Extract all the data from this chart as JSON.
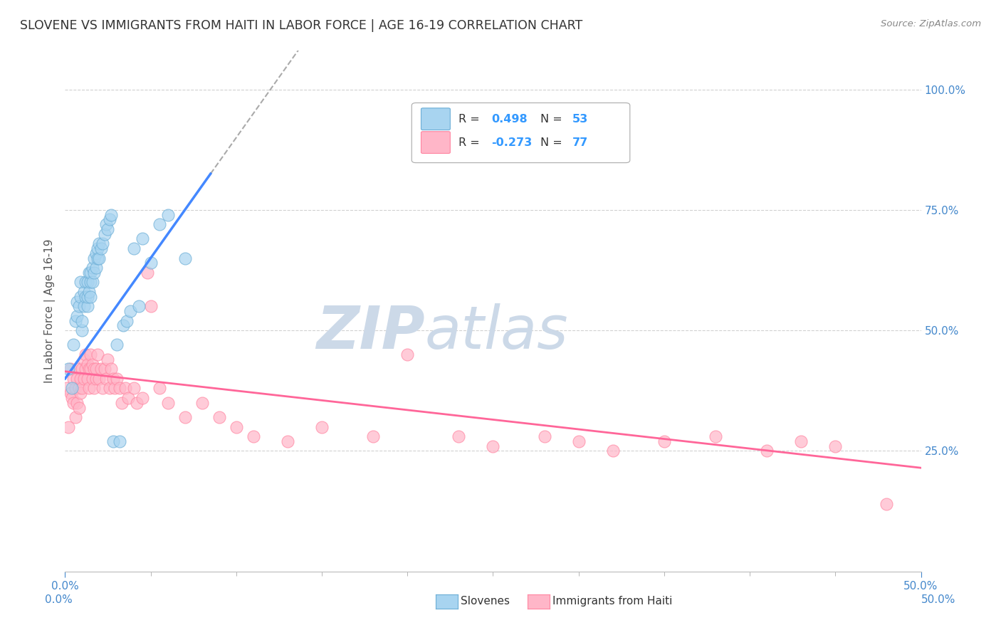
{
  "title": "SLOVENE VS IMMIGRANTS FROM HAITI IN LABOR FORCE | AGE 16-19 CORRELATION CHART",
  "source": "Source: ZipAtlas.com",
  "ylabel": "In Labor Force | Age 16-19",
  "xmin": 0.0,
  "xmax": 0.5,
  "ymin": 0.0,
  "ymax": 1.08,
  "slovene_color": "#a8d4f0",
  "slovene_edge": "#6baed6",
  "haiti_color": "#ffb6c8",
  "haiti_edge": "#ff85a1",
  "line_blue": "#4488ff",
  "line_pink": "#ff6699",
  "line_dash": "#aaaaaa",
  "slovene_R": 0.498,
  "slovene_N": 53,
  "haiti_R": -0.273,
  "haiti_N": 77,
  "watermark_zip": "ZIP",
  "watermark_atlas": "atlas",
  "watermark_color": "#ccd9e8",
  "slovene_x": [
    0.002,
    0.004,
    0.005,
    0.006,
    0.007,
    0.007,
    0.008,
    0.009,
    0.009,
    0.01,
    0.01,
    0.011,
    0.011,
    0.012,
    0.012,
    0.013,
    0.013,
    0.013,
    0.014,
    0.014,
    0.015,
    0.015,
    0.015,
    0.016,
    0.016,
    0.017,
    0.017,
    0.018,
    0.018,
    0.019,
    0.019,
    0.02,
    0.02,
    0.021,
    0.022,
    0.023,
    0.024,
    0.025,
    0.026,
    0.027,
    0.028,
    0.03,
    0.032,
    0.034,
    0.036,
    0.038,
    0.04,
    0.043,
    0.045,
    0.05,
    0.055,
    0.06,
    0.07
  ],
  "slovene_y": [
    0.42,
    0.38,
    0.47,
    0.52,
    0.53,
    0.56,
    0.55,
    0.57,
    0.6,
    0.5,
    0.52,
    0.55,
    0.58,
    0.57,
    0.6,
    0.55,
    0.57,
    0.6,
    0.58,
    0.62,
    0.57,
    0.6,
    0.62,
    0.6,
    0.63,
    0.62,
    0.65,
    0.63,
    0.66,
    0.65,
    0.67,
    0.65,
    0.68,
    0.67,
    0.68,
    0.7,
    0.72,
    0.71,
    0.73,
    0.74,
    0.27,
    0.47,
    0.27,
    0.51,
    0.52,
    0.54,
    0.67,
    0.55,
    0.69,
    0.64,
    0.72,
    0.74,
    0.65
  ],
  "haiti_x": [
    0.001,
    0.002,
    0.003,
    0.003,
    0.004,
    0.005,
    0.005,
    0.006,
    0.006,
    0.007,
    0.007,
    0.008,
    0.008,
    0.008,
    0.009,
    0.009,
    0.01,
    0.01,
    0.011,
    0.011,
    0.012,
    0.012,
    0.013,
    0.013,
    0.014,
    0.014,
    0.015,
    0.015,
    0.016,
    0.016,
    0.017,
    0.017,
    0.018,
    0.018,
    0.019,
    0.02,
    0.021,
    0.022,
    0.023,
    0.024,
    0.025,
    0.026,
    0.027,
    0.028,
    0.029,
    0.03,
    0.032,
    0.033,
    0.035,
    0.037,
    0.04,
    0.042,
    0.045,
    0.048,
    0.05,
    0.055,
    0.06,
    0.07,
    0.08,
    0.09,
    0.1,
    0.11,
    0.13,
    0.15,
    0.18,
    0.2,
    0.23,
    0.25,
    0.28,
    0.3,
    0.32,
    0.35,
    0.38,
    0.41,
    0.43,
    0.45,
    0.48
  ],
  "haiti_y": [
    0.38,
    0.3,
    0.37,
    0.42,
    0.36,
    0.35,
    0.4,
    0.32,
    0.38,
    0.35,
    0.4,
    0.34,
    0.38,
    0.42,
    0.37,
    0.4,
    0.38,
    0.42,
    0.4,
    0.44,
    0.42,
    0.45,
    0.4,
    0.43,
    0.42,
    0.38,
    0.42,
    0.45,
    0.4,
    0.43,
    0.42,
    0.38,
    0.4,
    0.42,
    0.45,
    0.4,
    0.42,
    0.38,
    0.42,
    0.4,
    0.44,
    0.38,
    0.42,
    0.4,
    0.38,
    0.4,
    0.38,
    0.35,
    0.38,
    0.36,
    0.38,
    0.35,
    0.36,
    0.62,
    0.55,
    0.38,
    0.35,
    0.32,
    0.35,
    0.32,
    0.3,
    0.28,
    0.27,
    0.3,
    0.28,
    0.45,
    0.28,
    0.26,
    0.28,
    0.27,
    0.25,
    0.27,
    0.28,
    0.25,
    0.27,
    0.26,
    0.14
  ]
}
